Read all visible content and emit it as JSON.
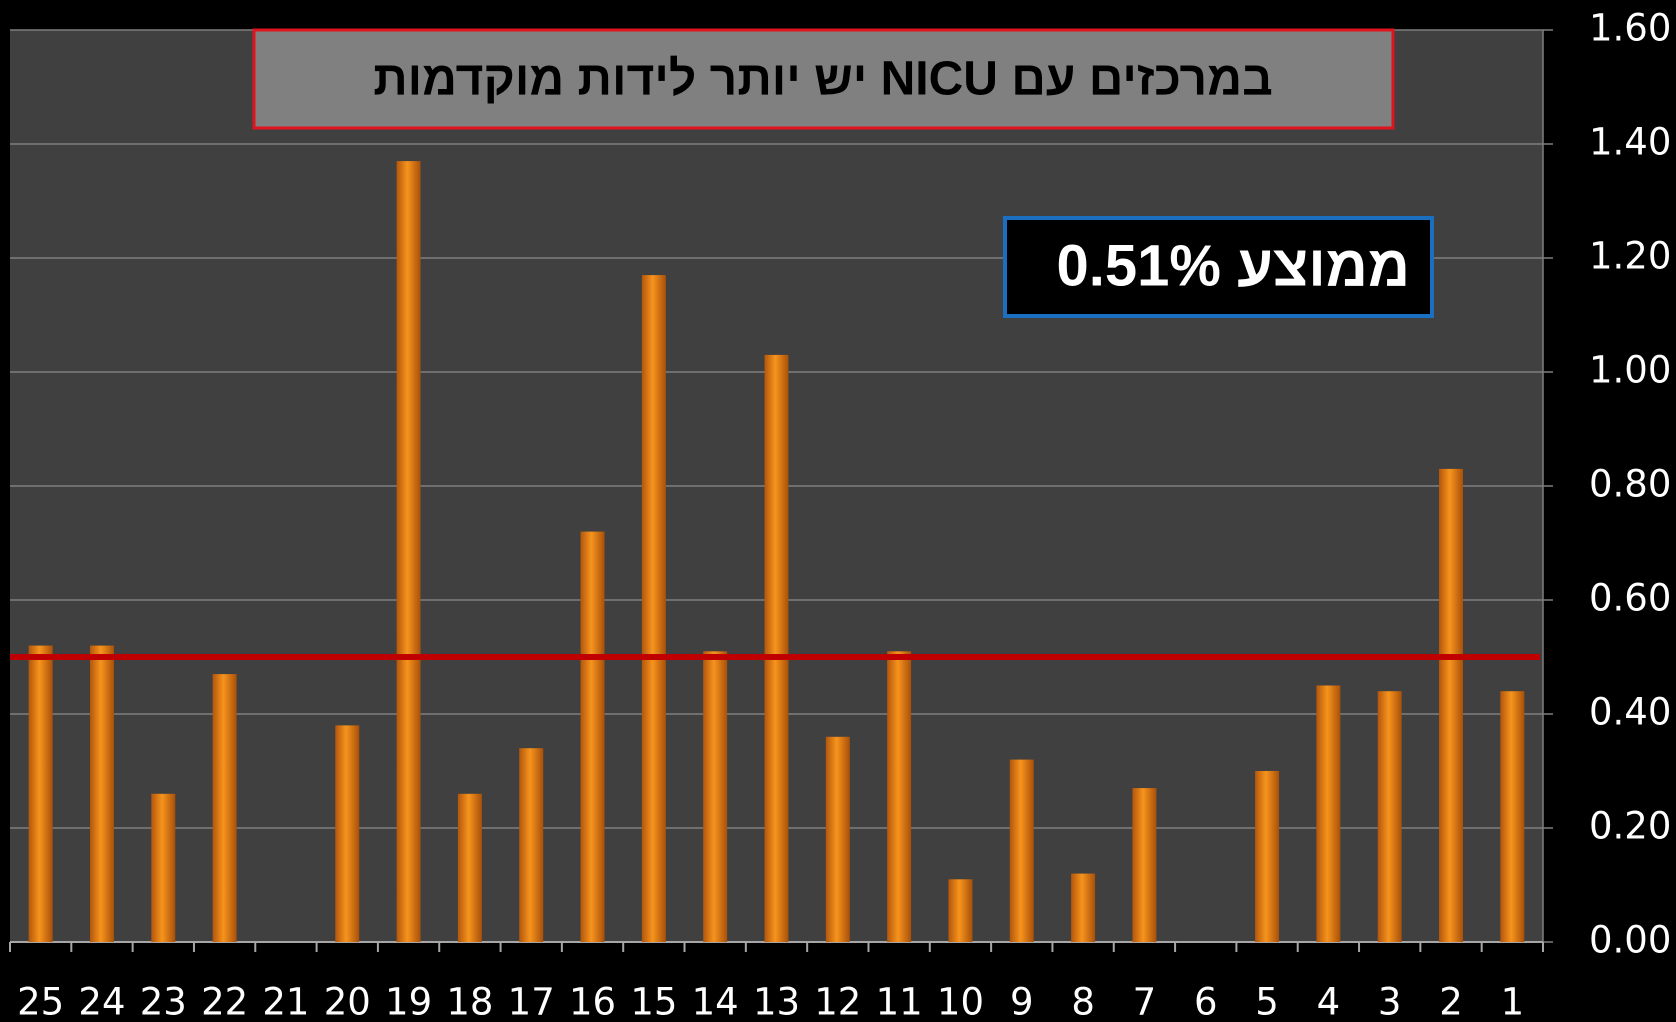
{
  "chart_data": {
    "type": "bar",
    "title": "במרכזים עם NICU יש יותר לידות מוקדמות",
    "annotation": "ממוצע  0.51%",
    "categories": [
      "25",
      "24",
      "23",
      "22",
      "21",
      "20",
      "19",
      "18",
      "17",
      "16",
      "15",
      "14",
      "13",
      "12",
      "11",
      "10",
      "9",
      "8",
      "7",
      "6",
      "5",
      "4",
      "3",
      "2",
      "1"
    ],
    "values": [
      0.52,
      0.52,
      0.26,
      0.47,
      0,
      0.38,
      1.37,
      0.26,
      0.34,
      0.72,
      1.17,
      0.51,
      1.03,
      0.36,
      0.51,
      0.11,
      0.32,
      0.12,
      0.27,
      0,
      0.3,
      0.45,
      0.44,
      0.83,
      0.44
    ],
    "color": "#f7941d",
    "reference_line": 0.5,
    "reference_color": "#c00000",
    "ylim": [
      0,
      1.6
    ],
    "yticks": [
      {
        "value": 0,
        "label": "0.00"
      },
      {
        "value": 0.2,
        "label": "0.20"
      },
      {
        "value": 0.4,
        "label": "0.40"
      },
      {
        "value": 0.6,
        "label": "0.60"
      },
      {
        "value": 0.8,
        "label": "0.80"
      },
      {
        "value": 1.0,
        "label": "1.00"
      },
      {
        "value": 1.2,
        "label": "1.20"
      },
      {
        "value": 1.4,
        "label": "1.40"
      },
      {
        "value": 1.6,
        "label": "1.60"
      }
    ],
    "y_axis_side": "right",
    "grid": true
  }
}
